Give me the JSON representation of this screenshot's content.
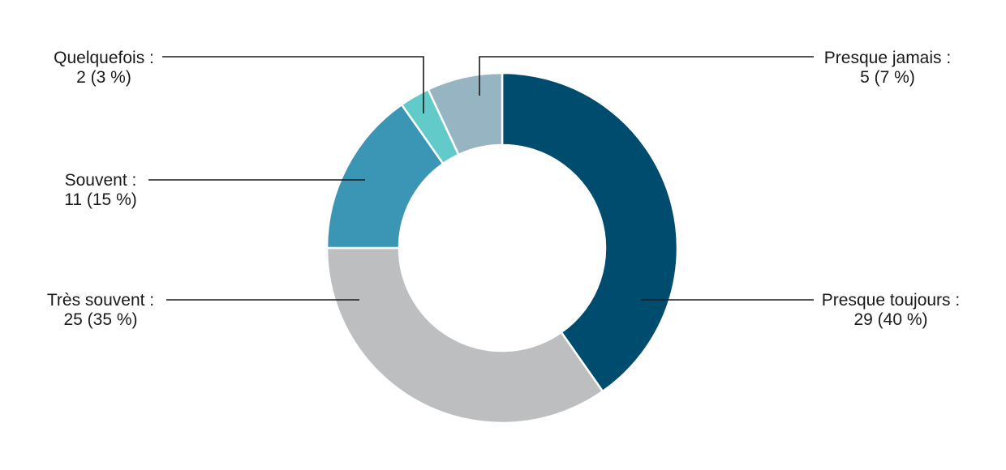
{
  "chart_data": {
    "type": "pie",
    "donut": true,
    "categories": [
      "Presque toujours",
      "Très souvent",
      "Souvent",
      "Quelquefois",
      "Presque jamais"
    ],
    "values": [
      29,
      25,
      11,
      2,
      5
    ],
    "percentages": [
      40,
      35,
      15,
      3,
      7
    ],
    "colors": [
      "#004c6f",
      "#bcbec0",
      "#3b96b6",
      "#62cbc9",
      "#97b4c3"
    ],
    "labels": [
      {
        "name": "Presque toujours :",
        "value": "29 (40 %)"
      },
      {
        "name": "Très souvent :",
        "value": "25 (35 %)"
      },
      {
        "name": "Souvent :",
        "value": "11 (15 %)"
      },
      {
        "name": "Quelquefois :",
        "value": "2 (3 %)"
      },
      {
        "name": "Presque jamais :",
        "value": "5 (7 %)"
      }
    ],
    "legend": "none"
  }
}
